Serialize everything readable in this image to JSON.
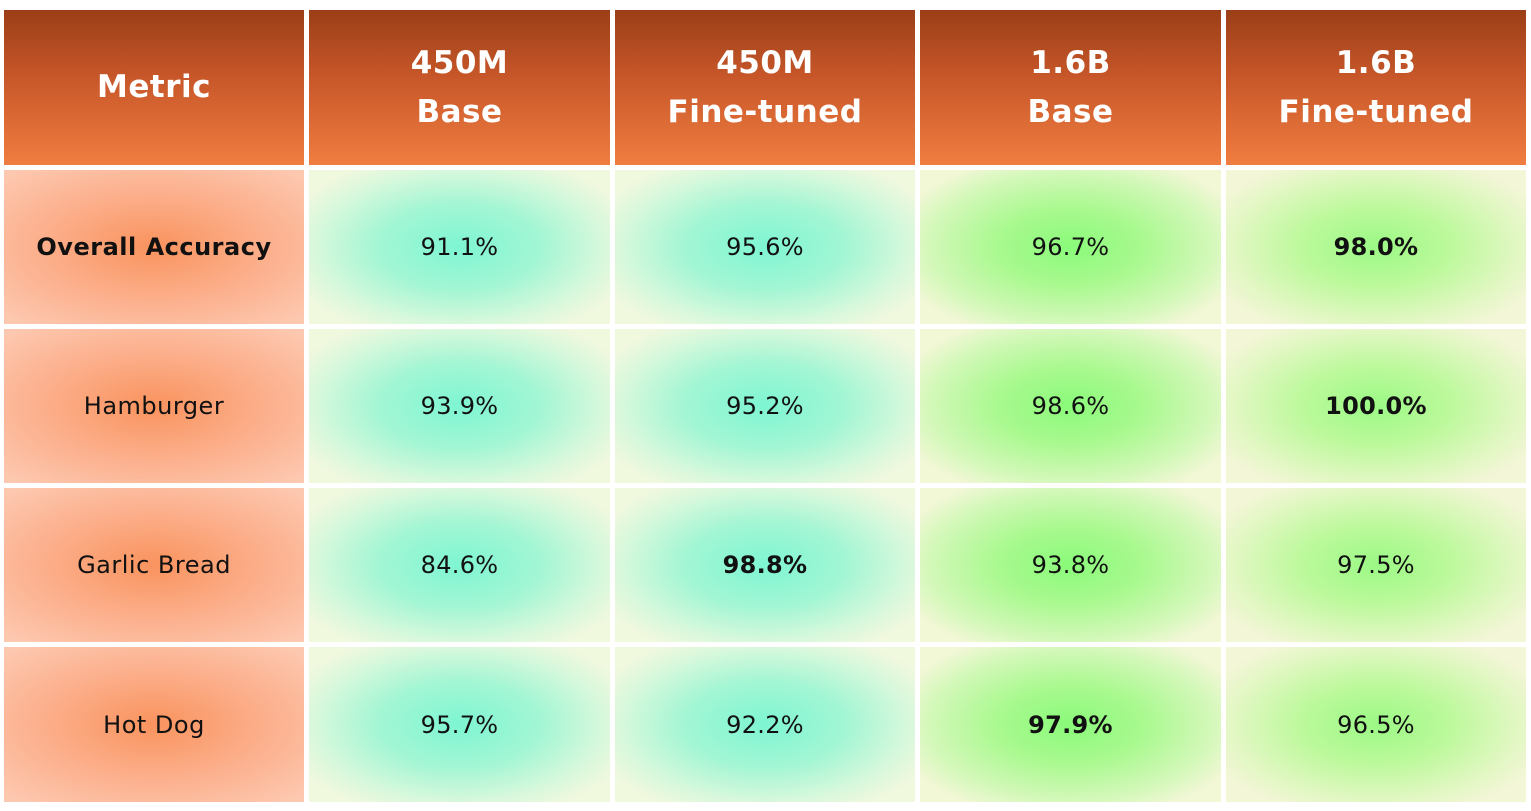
{
  "chart_data": {
    "type": "table",
    "columns": [
      {
        "line1": "Metric",
        "line2": ""
      },
      {
        "line1": "450M",
        "line2": "Base"
      },
      {
        "line1": "450M",
        "line2": "Fine-tuned"
      },
      {
        "line1": "1.6B",
        "line2": "Base"
      },
      {
        "line1": "1.6B",
        "line2": "Fine-tuned"
      }
    ],
    "rows": [
      {
        "metric": "Overall Accuracy",
        "metric_bold": true,
        "values": [
          "91.1%",
          "95.6%",
          "96.7%",
          "98.0%"
        ],
        "bold_index": 3
      },
      {
        "metric": "Hamburger",
        "metric_bold": false,
        "values": [
          "93.9%",
          "95.2%",
          "98.6%",
          "100.0%"
        ],
        "bold_index": 3
      },
      {
        "metric": "Garlic Bread",
        "metric_bold": false,
        "values": [
          "84.6%",
          "98.8%",
          "93.8%",
          "97.5%"
        ],
        "bold_index": 1
      },
      {
        "metric": "Hot Dog",
        "metric_bold": false,
        "values": [
          "95.7%",
          "92.2%",
          "97.9%",
          "96.5%"
        ],
        "bold_index": 2
      }
    ],
    "colors": {
      "header_dark": "#9b3e17",
      "header_light": "#f07d40",
      "metric_cell": "#f9935e",
      "450m_cells": "#7ef5d2",
      "1_6b_base_cells": "#8afa7a",
      "1_6b_finetuned_cells": "#9bf985"
    }
  }
}
